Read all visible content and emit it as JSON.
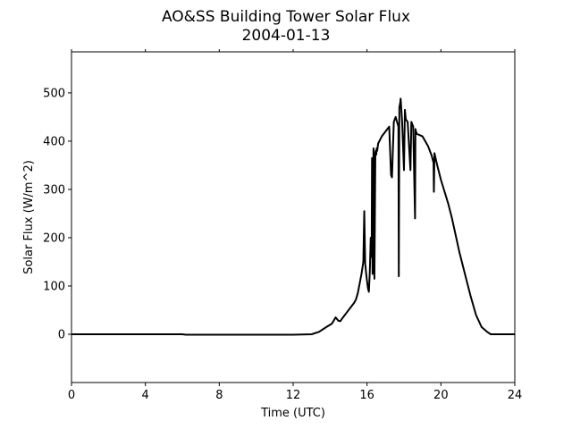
{
  "chart_data": {
    "type": "line",
    "title": "AO&SS Building Tower Solar Flux",
    "subtitle": "2004-01-13",
    "xlabel": "Time (UTC)",
    "ylabel": "Solar Flux (W/m^2)",
    "xlim": [
      0,
      24
    ],
    "ylim": [
      -100,
      585
    ],
    "x_ticks": [
      0,
      4,
      8,
      12,
      16,
      20,
      24
    ],
    "y_ticks": [
      0,
      100,
      200,
      300,
      400,
      500
    ],
    "grid": false,
    "line_color": "#000000",
    "series": [
      {
        "x": [
          0,
          3,
          6,
          6.2,
          9,
          12,
          13.0,
          13.4,
          13.8,
          14.1,
          14.3,
          14.45,
          14.55,
          14.7,
          14.9,
          15.1,
          15.3,
          15.4,
          15.5,
          15.6,
          15.7,
          15.8,
          15.85,
          15.9,
          15.92,
          15.94,
          16.0,
          16.05,
          16.1,
          16.15,
          16.2,
          16.25,
          16.27,
          16.3,
          16.32,
          16.35,
          16.4,
          16.45,
          16.47,
          16.5,
          16.52,
          16.55,
          16.6,
          16.8,
          17.0,
          17.1,
          17.2,
          17.25,
          17.3,
          17.35,
          17.45,
          17.55,
          17.7,
          17.72,
          17.75,
          17.8,
          17.82,
          17.85,
          17.9,
          18.0,
          18.05,
          18.1,
          18.2,
          18.35,
          18.4,
          18.45,
          18.5,
          18.6,
          18.62,
          18.65,
          18.7,
          19.0,
          19.3,
          19.5,
          19.6,
          19.62,
          19.65,
          19.8,
          20.0,
          20.2,
          20.4,
          20.6,
          20.8,
          21.0,
          21.3,
          21.6,
          21.9,
          22.2,
          22.5,
          22.7,
          22.9,
          23.1,
          23.4,
          24.0
        ],
        "y": [
          0,
          0,
          0,
          -1,
          -1,
          -1,
          0,
          5,
          15,
          22,
          35,
          28,
          27,
          35,
          45,
          55,
          65,
          72,
          85,
          105,
          125,
          150,
          255,
          145,
          140,
          130,
          110,
          95,
          88,
          130,
          200,
          160,
          365,
          125,
          200,
          385,
          115,
          375,
          380,
          372,
          385,
          380,
          395,
          410,
          420,
          425,
          430,
          380,
          330,
          325,
          440,
          450,
          430,
          120,
          470,
          480,
          488,
          470,
          440,
          340,
          465,
          445,
          440,
          340,
          440,
          435,
          430,
          240,
          425,
          420,
          415,
          410,
          390,
          370,
          355,
          295,
          375,
          350,
          320,
          295,
          270,
          240,
          205,
          170,
          125,
          80,
          40,
          15,
          5,
          0,
          0,
          0,
          0,
          0
        ]
      }
    ]
  }
}
